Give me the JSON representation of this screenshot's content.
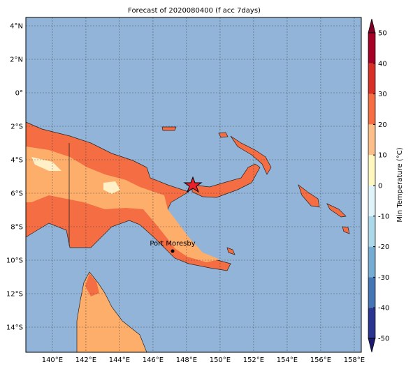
{
  "title": "Forecast of 2020080400 (f acc 7days)",
  "map": {
    "xlim": [
      138.42,
      158.42
    ],
    "ylim": [
      -15.5,
      4.5
    ],
    "xticks": [
      {
        "value": 140,
        "label": "140°E"
      },
      {
        "value": 142,
        "label": "142°E"
      },
      {
        "value": 144,
        "label": "144°E"
      },
      {
        "value": 146,
        "label": "146°E"
      },
      {
        "value": 148,
        "label": "148°E"
      },
      {
        "value": 150,
        "label": "150°E"
      },
      {
        "value": 152,
        "label": "152°E"
      },
      {
        "value": 154,
        "label": "154°E"
      },
      {
        "value": 156,
        "label": "156°E"
      },
      {
        "value": 158,
        "label": "158°E"
      }
    ],
    "yticks": [
      {
        "value": 4,
        "label": "4°N"
      },
      {
        "value": 2,
        "label": "2°N"
      },
      {
        "value": 0,
        "label": "0°"
      },
      {
        "value": -2,
        "label": "2°S"
      },
      {
        "value": -4,
        "label": "4°S"
      },
      {
        "value": -6,
        "label": "6°S"
      },
      {
        "value": -8,
        "label": "8°S"
      },
      {
        "value": -10,
        "label": "10°S"
      },
      {
        "value": -12,
        "label": "12°S"
      },
      {
        "value": -14,
        "label": "14°S"
      }
    ],
    "grid": true
  },
  "place": {
    "label": "Port Moresby"
  },
  "colorbar": {
    "label": "Min Temperature (°C)",
    "ylim": [
      -50,
      50
    ],
    "ticks": [
      -50,
      -40,
      -30,
      -20,
      -10,
      0,
      10,
      20,
      30,
      40,
      50
    ],
    "colors": [
      "#2b3590",
      "#4575b4",
      "#74add1",
      "#abd9e9",
      "#e0f3f8",
      "#fff7c0",
      "#fdbf8a",
      "#f46d43",
      "#d73027",
      "#a50026"
    ]
  }
}
